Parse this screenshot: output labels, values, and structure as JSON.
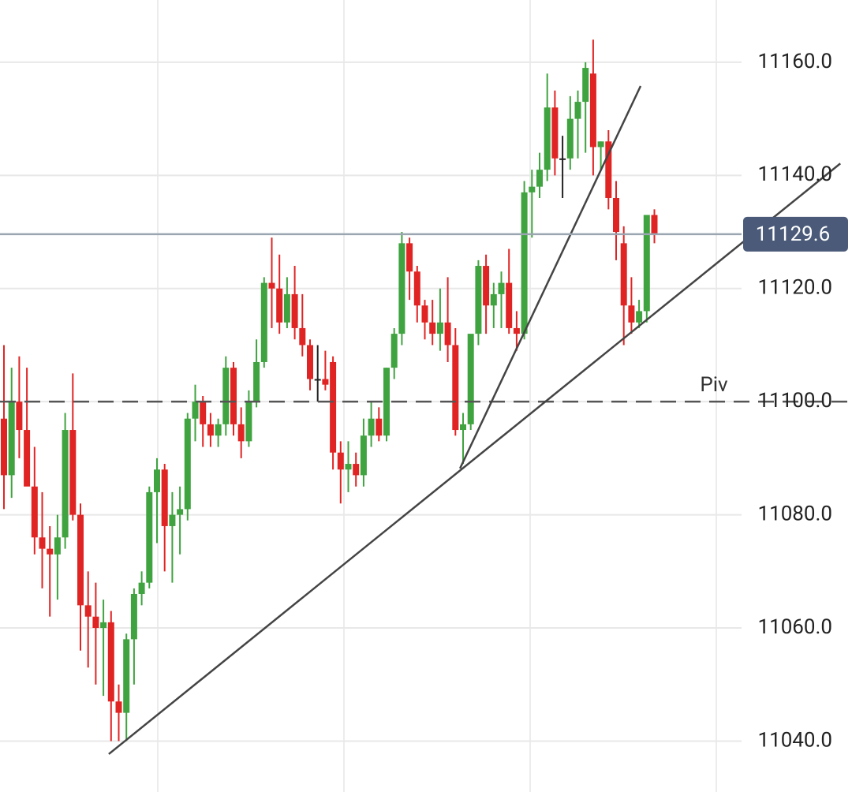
{
  "chart_data": {
    "type": "candlestick",
    "open": [
      11097,
      11087,
      11100,
      11095,
      11085,
      11076,
      11074,
      11073,
      11076,
      11095,
      11080,
      11064,
      11062,
      11060,
      11061,
      11047,
      11045,
      11058,
      11066,
      11068,
      11084,
      11088,
      11078,
      11080,
      11081,
      11097,
      11100,
      11096,
      11094,
      11096,
      11106,
      11096,
      11093,
      11100,
      11107,
      11121,
      11120,
      11114,
      11119,
      11113,
      11110,
      11104,
      11104,
      11107,
      11091,
      11088,
      11089,
      11087,
      11094,
      11097,
      11094,
      11106,
      11112,
      11128,
      11123,
      11117,
      11114,
      11112,
      11114,
      11110,
      11095,
      11096,
      11112,
      11124,
      11117,
      11119,
      11121,
      11113,
      11112,
      11137,
      11138,
      11141,
      11152,
      11143,
      11143,
      11150,
      11153,
      11158,
      11145,
      11146,
      11136,
      11128,
      11117,
      11114,
      11116,
      11133
    ],
    "high": [
      11110,
      11106,
      11108,
      11106,
      11092,
      11084,
      11078,
      11080,
      11098,
      11105,
      11082,
      11070,
      11068,
      11065,
      11063,
      11050,
      11059,
      11067,
      11070,
      11085,
      11090,
      11089,
      11084,
      11085,
      11098,
      11103,
      11101,
      11098,
      11097,
      11108,
      11107,
      11099,
      11102,
      11111,
      11122,
      11129,
      11126,
      11122,
      11124,
      11119,
      11111,
      11110,
      11109,
      11108,
      11093,
      11093,
      11091,
      11097,
      11100,
      11099,
      11106,
      11113,
      11130,
      11129,
      11124,
      11118,
      11118,
      11120,
      11122,
      11113,
      11098,
      11111,
      11125,
      11126,
      11121,
      11123,
      11127,
      11116,
      11139,
      11141,
      11144,
      11158,
      11155,
      11147,
      11154,
      11155,
      11160,
      11164,
      11146,
      11148,
      11139,
      11131,
      11122,
      11118,
      11133,
      11134
    ],
    "low": [
      11081,
      11083,
      11090,
      11086,
      11073,
      11067,
      11062,
      11065,
      11074,
      11079,
      11056,
      11053,
      11050,
      11048,
      11040,
      11040,
      11040,
      11050,
      11064,
      11067,
      11075,
      11070,
      11068,
      11073,
      11079,
      11093,
      11092,
      11092,
      11092,
      11094,
      11094,
      11090,
      11092,
      11099,
      11106,
      11113,
      11112,
      11113,
      11111,
      11108,
      11102,
      11100,
      11102,
      11088,
      11082,
      11084,
      11085,
      11085,
      11092,
      11093,
      11093,
      11104,
      11110,
      11118,
      11114,
      11111,
      11110,
      11109,
      11107,
      11094,
      11089,
      11095,
      11110,
      11112,
      11113,
      11113,
      11112,
      11109,
      11111,
      11129,
      11136,
      11139,
      11140,
      11136,
      11141,
      11143,
      11144,
      11140,
      11141,
      11134,
      11125,
      11110,
      11112,
      11113,
      11114,
      11128
    ],
    "close": [
      11087,
      11100,
      11095,
      11085,
      11076,
      11074,
      11073,
      11076,
      11095,
      11080,
      11064,
      11062,
      11060,
      11061,
      11047,
      11045,
      11058,
      11066,
      11068,
      11084,
      11088,
      11078,
      11080,
      11081,
      11097,
      11100,
      11096,
      11094,
      11096,
      11106,
      11096,
      11093,
      11100,
      11107,
      11121,
      11120,
      11114,
      11119,
      11113,
      11110,
      11104,
      11104,
      11103,
      11091,
      11088,
      11089,
      11087,
      11094,
      11097,
      11094,
      11106,
      11112,
      11128,
      11123,
      11117,
      11114,
      11112,
      11114,
      11110,
      11095,
      11096,
      11112,
      11124,
      11117,
      11119,
      11121,
      11113,
      11112,
      11137,
      11138,
      11141,
      11152,
      11143,
      11143,
      11150,
      11153,
      11159,
      11145,
      11146,
      11136,
      11130,
      11117,
      11114,
      11116,
      11133,
      11129.6
    ],
    "up_color": "#3fa33f",
    "down_color": "#e02424",
    "flat_color": "#222222",
    "ylim": [
      11031,
      11171
    ],
    "yticks": [
      {
        "value": 11040,
        "label": "11040.0"
      },
      {
        "value": 11060,
        "label": "11060.0"
      },
      {
        "value": 11080,
        "label": "11080.0"
      },
      {
        "value": 11100,
        "label": "11100.0"
      },
      {
        "value": 11120,
        "label": "11120.0"
      },
      {
        "value": 11140,
        "label": "11140.0"
      },
      {
        "value": 11160,
        "label": "11160.0"
      }
    ],
    "grid": true,
    "last_price": 11129.6,
    "pivot": {
      "label": "Piv",
      "value": 11100
    },
    "trendlines": [
      {
        "x": [
          13.7,
          109.3
        ],
        "y": [
          11037.7,
          11142.1
        ]
      },
      {
        "x": [
          59.6,
          83.2
        ],
        "y": [
          11088.2,
          11155.8
        ]
      }
    ]
  }
}
